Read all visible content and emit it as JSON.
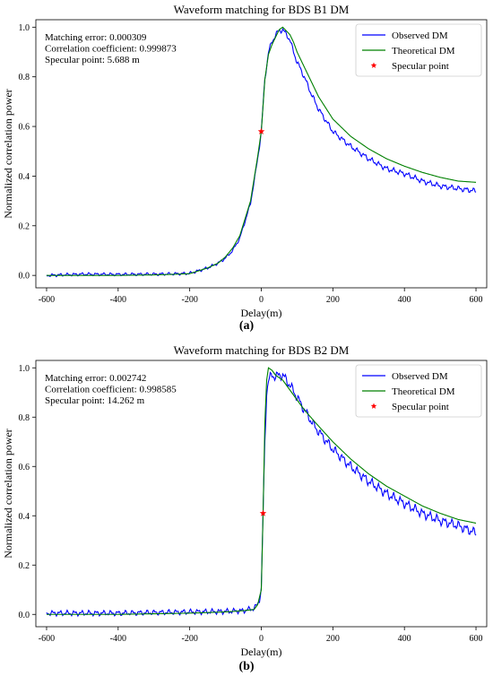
{
  "chart_data": [
    {
      "type": "line",
      "title": "Waveform matching for BDS B1 DM",
      "xlabel": "Delay(m)",
      "ylabel": "Normalized correlation power",
      "xlim": [
        -630,
        630
      ],
      "ylim": [
        -0.05,
        1.03
      ],
      "xticks": [
        -600,
        -400,
        -200,
        0,
        200,
        400,
        600
      ],
      "yticks": [
        0.0,
        0.2,
        0.4,
        0.6,
        0.8,
        1.0
      ],
      "xtick_labels": [
        "-600",
        "-400",
        "-200",
        "0",
        "200",
        "400",
        "600"
      ],
      "ytick_labels": [
        "0.0",
        "0.2",
        "0.4",
        "0.6",
        "0.8",
        "1.0"
      ],
      "grid": false,
      "legend_position": "top-right",
      "annotations": [
        "Matching error: 0.000309",
        "Correlation coefficient: 0.999873",
        "Specular point: 5.688 m"
      ],
      "specular_point": {
        "x": 0,
        "y": 0.58
      },
      "series": [
        {
          "name": "Observed DM",
          "color": "#0000ff",
          "noisy": true,
          "x": [
            -600,
            -500,
            -400,
            -300,
            -250,
            -200,
            -150,
            -120,
            -100,
            -80,
            -60,
            -45,
            -30,
            -20,
            -10,
            0,
            10,
            20,
            30,
            40,
            50,
            60,
            70,
            80,
            90,
            100,
            120,
            140,
            160,
            200,
            250,
            300,
            350,
            400,
            450,
            500,
            550,
            600
          ],
          "y": [
            0.0,
            0.005,
            0.004,
            0.005,
            0.006,
            0.008,
            0.03,
            0.05,
            0.07,
            0.1,
            0.15,
            0.22,
            0.29,
            0.38,
            0.47,
            0.58,
            0.79,
            0.9,
            0.94,
            0.97,
            0.985,
            0.99,
            0.97,
            0.95,
            0.9,
            0.86,
            0.8,
            0.73,
            0.67,
            0.58,
            0.52,
            0.47,
            0.43,
            0.41,
            0.38,
            0.36,
            0.35,
            0.34
          ]
        },
        {
          "name": "Theoretical DM",
          "color": "#008000",
          "noisy": false,
          "x": [
            -600,
            -500,
            -400,
            -300,
            -250,
            -200,
            -150,
            -120,
            -100,
            -80,
            -60,
            -45,
            -30,
            -20,
            -10,
            0,
            10,
            20,
            30,
            40,
            50,
            60,
            70,
            80,
            90,
            100,
            120,
            140,
            160,
            200,
            250,
            300,
            350,
            400,
            450,
            500,
            550,
            600
          ],
          "y": [
            0.0,
            0.0,
            0.0,
            0.002,
            0.004,
            0.007,
            0.03,
            0.05,
            0.075,
            0.11,
            0.16,
            0.23,
            0.3,
            0.39,
            0.48,
            0.58,
            0.79,
            0.89,
            0.93,
            0.96,
            0.99,
            1.0,
            0.985,
            0.97,
            0.94,
            0.9,
            0.84,
            0.78,
            0.72,
            0.63,
            0.56,
            0.51,
            0.47,
            0.44,
            0.415,
            0.395,
            0.38,
            0.375
          ]
        },
        {
          "name": "Specular point",
          "color": "#ff0000",
          "marker": "star"
        }
      ]
    },
    {
      "type": "line",
      "title": "Waveform matching for BDS B2 DM",
      "xlabel": "Delay(m)",
      "ylabel": "Normalized correlation power",
      "xlim": [
        -630,
        630
      ],
      "ylim": [
        -0.05,
        1.03
      ],
      "xticks": [
        -600,
        -400,
        -200,
        0,
        200,
        400,
        600
      ],
      "yticks": [
        0.0,
        0.2,
        0.4,
        0.6,
        0.8,
        1.0
      ],
      "xtick_labels": [
        "-600",
        "-400",
        "-200",
        "0",
        "200",
        "400",
        "600"
      ],
      "ytick_labels": [
        "0.0",
        "0.2",
        "0.4",
        "0.6",
        "0.8",
        "1.0"
      ],
      "grid": false,
      "legend_position": "top-right",
      "annotations": [
        "Matching error: 0.002742",
        "Correlation coefficient: 0.998585",
        "Specular point: 14.262 m"
      ],
      "specular_point": {
        "x": 5,
        "y": 0.41
      },
      "series": [
        {
          "name": "Observed DM",
          "color": "#0000ff",
          "noisy": true,
          "x": [
            -600,
            -400,
            -200,
            -100,
            -50,
            -20,
            -10,
            0,
            5,
            10,
            15,
            20,
            25,
            30,
            40,
            50,
            60,
            80,
            100,
            120,
            150,
            200,
            250,
            300,
            350,
            400,
            450,
            500,
            550,
            600
          ],
          "y": [
            0.005,
            0.005,
            0.01,
            0.012,
            0.015,
            0.025,
            0.04,
            0.1,
            0.41,
            0.7,
            0.9,
            0.95,
            0.96,
            0.97,
            0.965,
            0.97,
            0.97,
            0.93,
            0.88,
            0.83,
            0.76,
            0.67,
            0.6,
            0.54,
            0.49,
            0.45,
            0.41,
            0.38,
            0.36,
            0.33
          ]
        },
        {
          "name": "Theoretical DM",
          "color": "#008000",
          "noisy": false,
          "x": [
            -600,
            -400,
            -200,
            -100,
            -50,
            -20,
            -10,
            0,
            5,
            10,
            15,
            20,
            25,
            30,
            40,
            50,
            60,
            80,
            100,
            120,
            150,
            200,
            250,
            300,
            350,
            400,
            450,
            500,
            550,
            600
          ],
          "y": [
            0.0,
            0.0,
            0.005,
            0.01,
            0.015,
            0.02,
            0.04,
            0.1,
            0.41,
            0.78,
            0.95,
            1.0,
            0.995,
            0.99,
            0.97,
            0.96,
            0.95,
            0.91,
            0.87,
            0.83,
            0.78,
            0.7,
            0.63,
            0.57,
            0.52,
            0.48,
            0.44,
            0.41,
            0.385,
            0.37
          ]
        },
        {
          "name": "Specular point",
          "color": "#ff0000",
          "marker": "star"
        }
      ]
    }
  ],
  "captions": {
    "a": "(a)",
    "b": "(b)"
  }
}
